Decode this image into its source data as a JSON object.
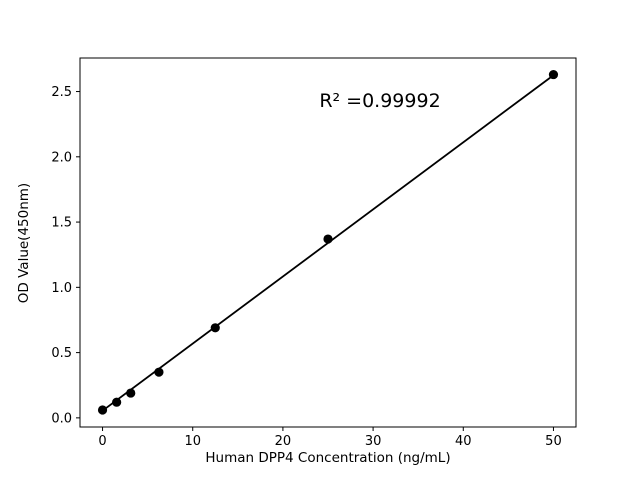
{
  "chart_data": {
    "type": "scatter",
    "title": "",
    "xlabel": "Human DPP4 Concentration (ng/mL)",
    "ylabel": "OD Value(450nm)",
    "annotation": "R² =0.99992",
    "x": [
      0,
      1.5625,
      3.125,
      6.25,
      12.5,
      25,
      50
    ],
    "y": [
      0.06,
      0.12,
      0.19,
      0.35,
      0.69,
      1.37,
      2.63
    ],
    "fit": {
      "slope": 0.0514,
      "intercept": 0.055,
      "x_start": 0,
      "x_end": 50
    },
    "xlim": [
      -2.5,
      52.5
    ],
    "ylim": [
      -0.07,
      2.757
    ],
    "xticks": [
      0,
      10,
      20,
      30,
      40,
      50
    ],
    "yticks": [
      0.0,
      0.5,
      1.0,
      1.5,
      2.0,
      2.5
    ],
    "grid": false,
    "legend": null,
    "colors": {
      "line": "#000000",
      "marker": "#000000",
      "text": "#000000",
      "background": "#ffffff"
    }
  }
}
